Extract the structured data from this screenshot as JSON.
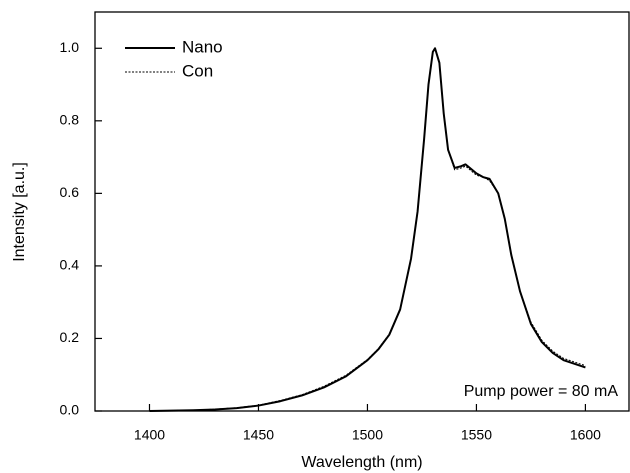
{
  "chart_data": {
    "type": "line",
    "xlabel": "Wavelength (nm)",
    "ylabel": "Intensity [a.u.]",
    "annotation": "Pump power = 80 mA",
    "legend": "upper left",
    "x": [
      1400,
      1410,
      1420,
      1430,
      1440,
      1450,
      1460,
      1470,
      1480,
      1490,
      1500,
      1505,
      1510,
      1515,
      1520,
      1523,
      1526,
      1528,
      1530,
      1531,
      1533,
      1535,
      1537,
      1540,
      1543,
      1545,
      1548,
      1550,
      1553,
      1556,
      1560,
      1563,
      1566,
      1570,
      1575,
      1580,
      1585,
      1590,
      1595,
      1600
    ],
    "series": [
      {
        "name": "Nano",
        "color": "#000000",
        "dash": false,
        "width": 2,
        "values": [
          0.0,
          0.001,
          0.002,
          0.004,
          0.008,
          0.015,
          0.027,
          0.043,
          0.065,
          0.095,
          0.14,
          0.17,
          0.21,
          0.28,
          0.42,
          0.55,
          0.75,
          0.9,
          0.99,
          1.0,
          0.96,
          0.82,
          0.72,
          0.67,
          0.675,
          0.68,
          0.665,
          0.655,
          0.645,
          0.64,
          0.6,
          0.53,
          0.43,
          0.33,
          0.24,
          0.19,
          0.16,
          0.14,
          0.13,
          0.12
        ]
      },
      {
        "name": "Con",
        "color": "#000000",
        "dash": true,
        "width": 1,
        "values": [
          0.0,
          0.001,
          0.002,
          0.005,
          0.009,
          0.016,
          0.029,
          0.045,
          0.068,
          0.098,
          0.142,
          0.172,
          0.212,
          0.282,
          0.42,
          0.55,
          0.75,
          0.9,
          0.99,
          1.0,
          0.96,
          0.82,
          0.72,
          0.665,
          0.67,
          0.675,
          0.66,
          0.65,
          0.645,
          0.635,
          0.6,
          0.53,
          0.43,
          0.33,
          0.245,
          0.195,
          0.165,
          0.145,
          0.135,
          0.125
        ]
      }
    ],
    "xlim": [
      1375,
      1620
    ],
    "xticks": [
      1400,
      1450,
      1500,
      1550,
      1600
    ],
    "ylim": [
      0,
      1.1
    ],
    "yticks": [
      {
        "value": 0,
        "label": "0.0"
      },
      0.2,
      0.4,
      0.6,
      0.8,
      {
        "value": 1,
        "label": "1.0"
      }
    ],
    "grid": false
  }
}
